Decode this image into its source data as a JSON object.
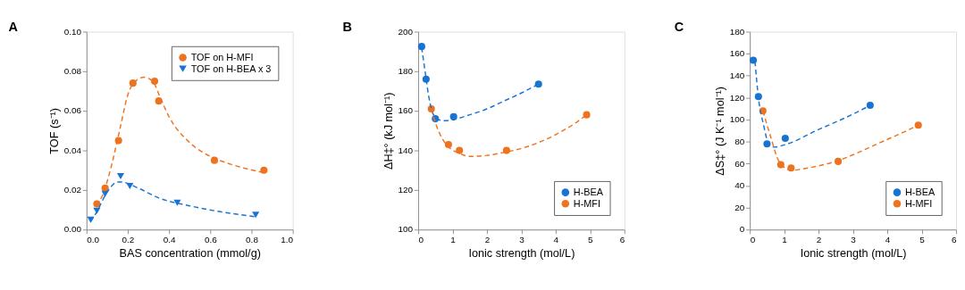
{
  "chart_data": [
    {
      "type": "scatter",
      "title": "A",
      "xlabel": "BAS concentration (mmol/g)",
      "ylabel": "TOF (s⁻¹)",
      "xlim": [
        0,
        1
      ],
      "ylim": [
        0,
        0.1
      ],
      "xticks": [
        {
          "value": 0,
          "label": "0.0"
        },
        {
          "value": 0.2,
          "label": "0.2"
        },
        {
          "value": 0.4,
          "label": "0.4"
        },
        {
          "value": 0.6,
          "label": "0.6"
        },
        {
          "value": 0.8,
          "label": "0.8"
        },
        {
          "value": 1,
          "label": "1.0"
        }
      ],
      "yticks": [
        {
          "value": 0,
          "label": "0.00"
        },
        {
          "value": 0.02,
          "label": "0.02"
        },
        {
          "value": 0.04,
          "label": "0.04"
        },
        {
          "value": 0.06,
          "label": "0.06"
        },
        {
          "value": 0.08,
          "label": "0.08"
        },
        {
          "value": 0.1,
          "label": "0.10"
        }
      ],
      "grid": false,
      "legend": "top right",
      "series": [
        {
          "name": "TOF on H-MFI",
          "color": "#ed7320",
          "marker": "circle",
          "x": [
            0.05,
            0.09,
            0.155,
            0.225,
            0.33,
            0.35,
            0.62,
            0.86
          ],
          "values": [
            0.013,
            0.021,
            0.045,
            0.074,
            0.075,
            0.065,
            0.035,
            0.03
          ]
        },
        {
          "name": "TOF on H-BEA x 3",
          "color": "#1874d2",
          "marker": "triangle",
          "x": [
            0.02,
            0.05,
            0.09,
            0.165,
            0.21,
            0.44,
            0.82
          ],
          "values": [
            0.005,
            0.0095,
            0.018,
            0.027,
            0.022,
            0.0135,
            0.0075
          ]
        },
        {
          "type": "line",
          "color": "#ed7320",
          "line_style": "dashed",
          "x": [
            0.05,
            0.08,
            0.12,
            0.16,
            0.2,
            0.25,
            0.28,
            0.32,
            0.36,
            0.4,
            0.5,
            0.6,
            0.7,
            0.85
          ],
          "values": [
            0.012,
            0.018,
            0.032,
            0.05,
            0.068,
            0.076,
            0.077,
            0.075,
            0.066,
            0.057,
            0.044,
            0.037,
            0.033,
            0.029
          ]
        },
        {
          "type": "line",
          "color": "#1874d2",
          "line_style": "dashed",
          "x": [
            0.02,
            0.05,
            0.1,
            0.15,
            0.17,
            0.25,
            0.35,
            0.5,
            0.65,
            0.82
          ],
          "values": [
            0.004,
            0.009,
            0.019,
            0.024,
            0.024,
            0.021,
            0.016,
            0.012,
            0.009,
            0.0065
          ]
        }
      ]
    },
    {
      "type": "scatter",
      "title": "B",
      "xlabel": "Ionic strength (mol/L)",
      "ylabel": "ΔH‡° (kJ mol⁻¹)",
      "xlim": [
        0,
        6
      ],
      "ylim": [
        100,
        200
      ],
      "xticks": [
        0,
        1,
        2,
        3,
        4,
        5,
        6
      ],
      "yticks": [
        100,
        120,
        140,
        160,
        180,
        200
      ],
      "grid": false,
      "legend": "bottom right",
      "series": [
        {
          "name": "H-BEA",
          "color": "#1874d2",
          "marker": "circle",
          "x": [
            0.1,
            0.23,
            0.5,
            1.03,
            3.5
          ],
          "values": [
            192.5,
            176,
            156,
            157,
            173.5
          ]
        },
        {
          "name": "H-MFI",
          "color": "#ed7320",
          "marker": "circle",
          "x": [
            0.38,
            0.88,
            1.2,
            2.57,
            4.9
          ],
          "values": [
            161,
            143,
            140,
            140,
            158
          ]
        },
        {
          "type": "line",
          "color": "#1874d2",
          "line_style": "dashed",
          "x": [
            0.1,
            0.2,
            0.3,
            0.4,
            0.55,
            0.75,
            1.0,
            1.5,
            2.0,
            2.5,
            3.0,
            3.5
          ],
          "values": [
            192,
            180,
            168,
            160,
            156,
            155,
            155.5,
            158,
            161,
            165,
            169,
            173.5
          ]
        },
        {
          "type": "line",
          "color": "#ed7320",
          "line_style": "dashed",
          "x": [
            0.38,
            0.5,
            0.7,
            0.9,
            1.2,
            1.5,
            2.0,
            2.5,
            3.0,
            3.5,
            4.0,
            4.5,
            4.9
          ],
          "values": [
            161,
            154,
            146,
            141.5,
            138.5,
            137,
            137.5,
            139,
            141,
            144,
            148,
            153,
            158
          ]
        }
      ]
    },
    {
      "type": "scatter",
      "title": "C",
      "xlabel": "Ionic strength (mol/L)",
      "ylabel": "ΔS‡° (J K⁻¹ mol⁻¹)",
      "xlim": [
        0,
        6
      ],
      "ylim": [
        0,
        180
      ],
      "xticks": [
        0,
        1,
        2,
        3,
        4,
        5,
        6
      ],
      "yticks": [
        0,
        20,
        40,
        60,
        80,
        100,
        120,
        140,
        160,
        180
      ],
      "grid": false,
      "legend": "bottom right",
      "series": [
        {
          "name": "H-BEA",
          "color": "#1874d2",
          "marker": "circle",
          "x": [
            0.1,
            0.25,
            0.5,
            1.03,
            3.5
          ],
          "values": [
            154,
            121,
            78,
            83,
            113
          ]
        },
        {
          "name": "H-MFI",
          "color": "#ed7320",
          "marker": "circle",
          "x": [
            0.38,
            0.9,
            1.2,
            2.57,
            4.9
          ],
          "values": [
            108,
            59,
            56,
            62,
            95
          ]
        },
        {
          "type": "line",
          "color": "#1874d2",
          "line_style": "dashed",
          "x": [
            0.15,
            0.25,
            0.4,
            0.55,
            0.7,
            1.0,
            2.0,
            3.0,
            3.5
          ],
          "values": [
            153,
            120,
            95,
            78,
            75,
            77,
            91,
            105,
            113
          ]
        },
        {
          "type": "line",
          "color": "#ed7320",
          "line_style": "dashed",
          "x": [
            0.38,
            0.6,
            0.85,
            1.2,
            1.5,
            2.0,
            2.5,
            3.0,
            3.5,
            4.0,
            4.5,
            4.9
          ],
          "values": [
            108,
            85,
            62,
            54,
            55,
            58,
            62,
            68,
            75,
            82,
            89,
            95
          ]
        }
      ]
    }
  ]
}
